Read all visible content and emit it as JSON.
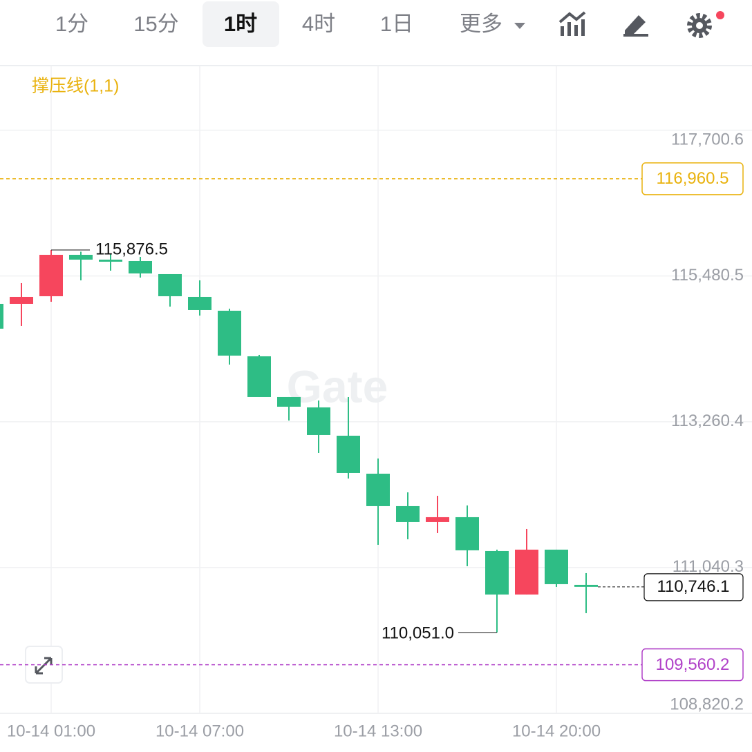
{
  "toolbar": {
    "tabs": [
      "1分",
      "15分",
      "1时",
      "4时",
      "1日",
      "更多"
    ],
    "active": 2
  },
  "chart_data": {
    "type": "candlestick",
    "indicator_label": "撑压线(1,1)",
    "watermark": "Gate",
    "categories": [
      null,
      null,
      "10-14 01:00",
      null,
      null,
      null,
      null,
      "10-14 07:00",
      null,
      null,
      null,
      null,
      null,
      "10-14 13:00",
      null,
      null,
      null,
      null,
      null,
      "10-14 20:00",
      null
    ],
    "open": [
      115056.3,
      115056.3,
      115172.0,
      115802.9,
      115729.3,
      115708.3,
      115508.5,
      115161.5,
      114951.2,
      114257.2,
      113636.8,
      113479.1,
      113047.9,
      112469.6,
      111975.4,
      111733.6,
      111807.2,
      111291.9,
      110629.5,
      111312.9,
      110776.7
    ],
    "high": [
      115108.9,
      115371.8,
      115876.5,
      115850.0,
      115813.4,
      115771.3,
      115508.5,
      115413.8,
      114982.7,
      114278.3,
      113636.8,
      113584.2,
      113636.8,
      112700.9,
      112185.7,
      112133.1,
      111985.9,
      111312.9,
      111628.4,
      111312.9,
      110955.4
    ],
    "low": [
      114677.8,
      114719.9,
      115087.9,
      115413.8,
      115561.1,
      115455.9,
      115014.3,
      114877.6,
      114131.0,
      113636.8,
      113279.3,
      112785.1,
      112396.0,
      111386.6,
      111470.7,
      111565.3,
      111060.6,
      110051.0,
      110629.5,
      110745.2,
      110345.6
    ],
    "close": [
      114677.8,
      115161.5,
      115802.9,
      115729.3,
      115697.8,
      115519.0,
      115172.0,
      114961.7,
      114267.7,
      113636.8,
      113489.6,
      113058.5,
      112480.1,
      111975.4,
      111733.6,
      111807.2,
      111302.4,
      110629.5,
      111312.9,
      110787.2,
      110746.1
    ],
    "up_color": "#f6465d",
    "down_color": "#2ebd85",
    "ylim": [
      108820.2,
      118684.1
    ],
    "yticks": [
      {
        "value": 117700.6,
        "label": "117,700.6"
      },
      {
        "value": 115480.5,
        "label": "115,480.5"
      },
      {
        "value": 113260.4,
        "label": "113,260.4"
      },
      {
        "value": 111040.3,
        "label": "111,040.3"
      },
      {
        "value": 108820.2,
        "label": "108,820.2"
      }
    ],
    "grid": true,
    "resistance": {
      "value": 116960.5,
      "label": "116,960.5",
      "color": "#e9b20e"
    },
    "support": {
      "value": 109560.2,
      "label": "109,560.2",
      "color": "#b040c8"
    },
    "last_price": {
      "value": 110746.1,
      "label": "110,746.1"
    },
    "high_marker": {
      "value": 115876.5,
      "label": "115,876.5"
    },
    "low_marker": {
      "value": 110051.0,
      "label": "110,051.0"
    }
  }
}
